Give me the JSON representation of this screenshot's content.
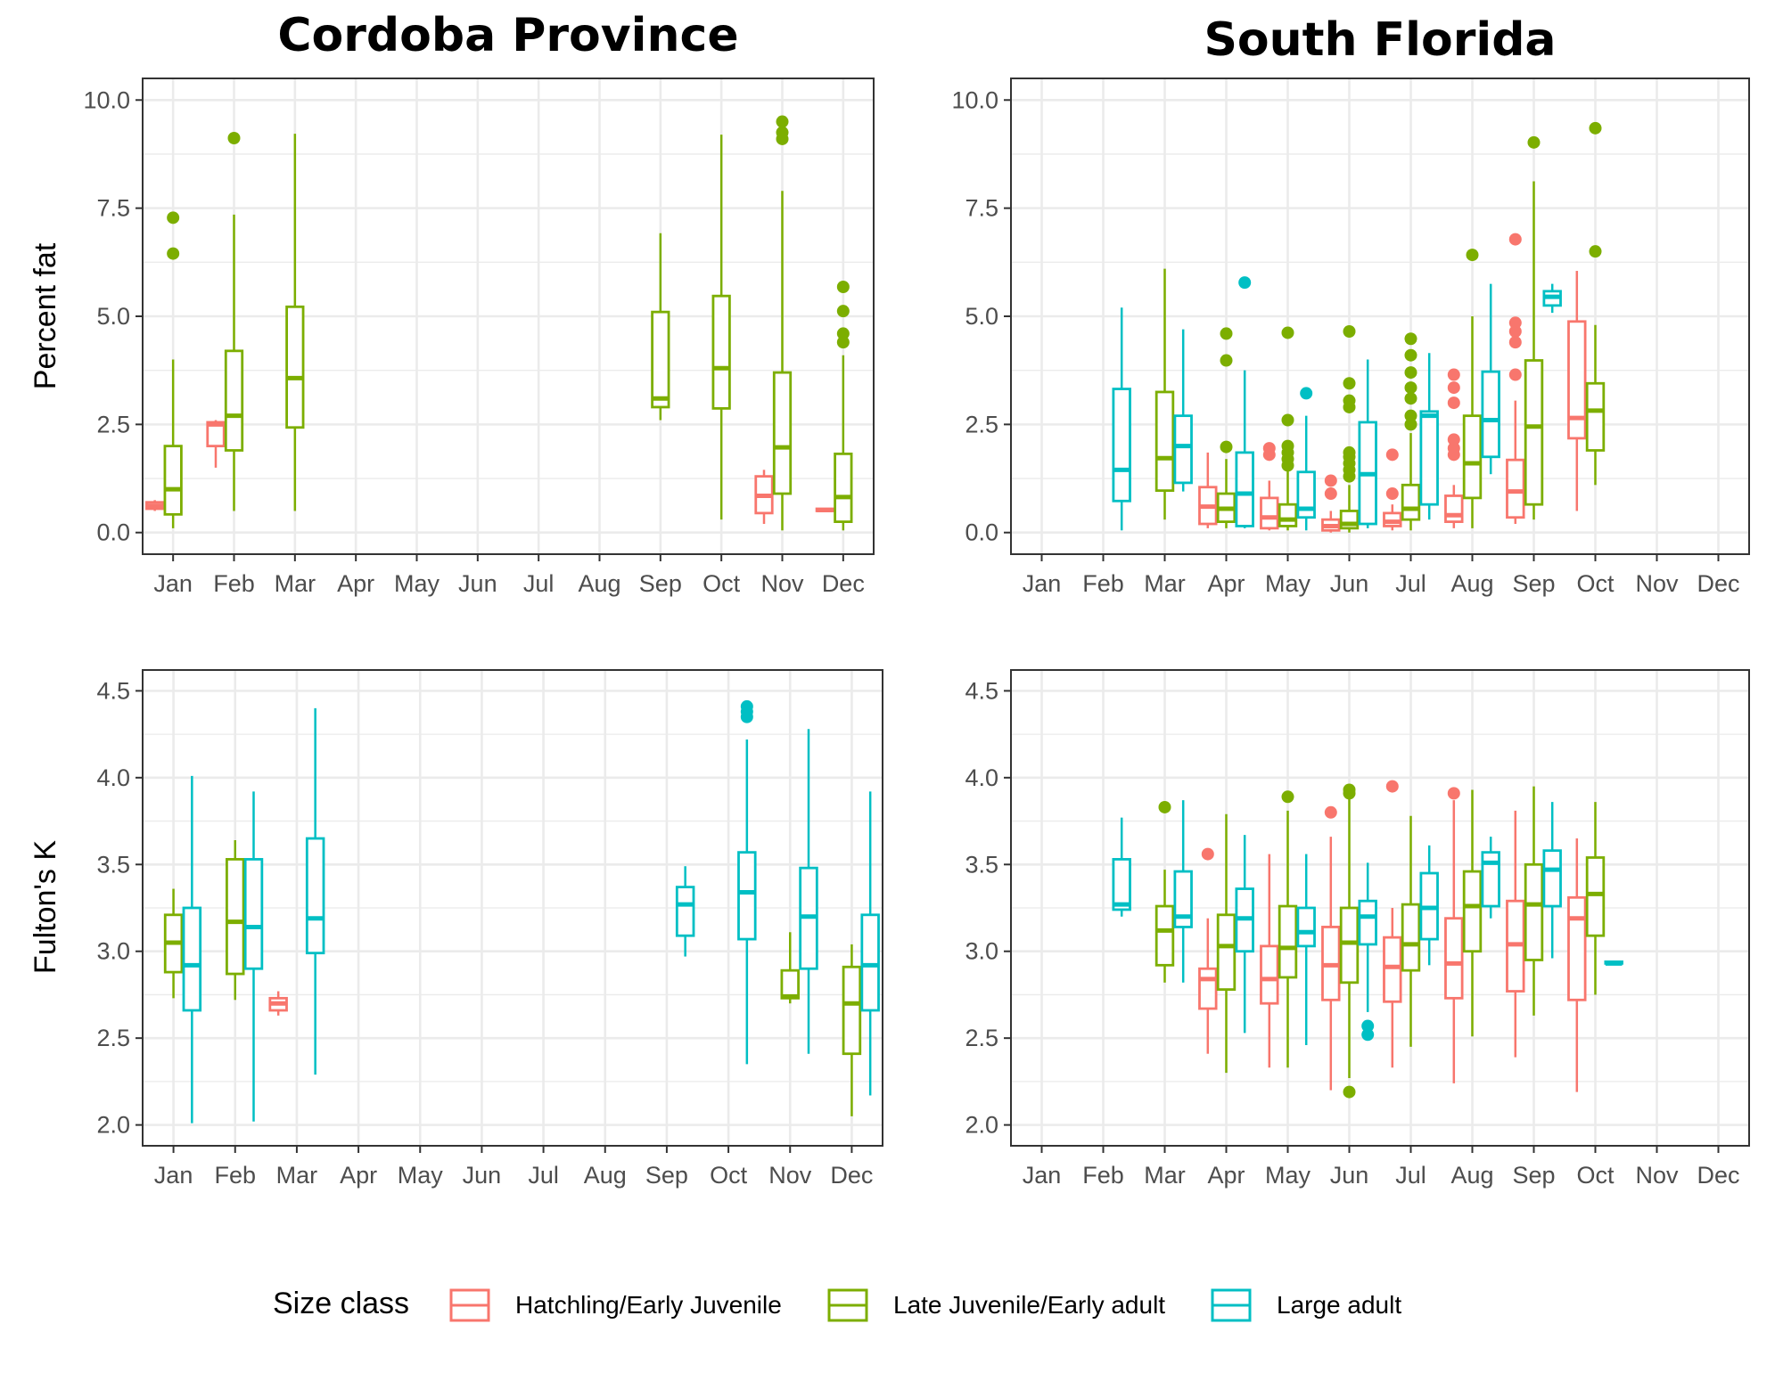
{
  "colors": {
    "hatchling": "#F8766D",
    "late_juvenile": "#7CAE00",
    "large_adult": "#00BFC4",
    "grid": "#EBEBEB",
    "panel_border": "#333333",
    "axis_text": "#4D4D4D"
  },
  "months": [
    "Jan",
    "Feb",
    "Mar",
    "Apr",
    "May",
    "Jun",
    "Jul",
    "Aug",
    "Sep",
    "Oct",
    "Nov",
    "Dec"
  ],
  "legend": {
    "title": "Size class",
    "items": [
      {
        "key": "hatchling",
        "label": "Hatchling/Early Juvenile"
      },
      {
        "key": "late_juvenile",
        "label": "Late Juvenile/Early adult"
      },
      {
        "key": "large_adult",
        "label": "Large adult"
      }
    ],
    "position": "bottom"
  },
  "columns": [
    "Cordoba Province",
    "South Florida"
  ],
  "rows": [
    "Percent fat",
    "Fulton's K"
  ],
  "chart_data": [
    {
      "type": "box",
      "title": "Cordoba Province",
      "xlabel": "",
      "ylabel": "Percent fat",
      "ylim": [
        -0.5,
        10.5
      ],
      "yticks": [
        "0.0",
        "2.5",
        "5.0",
        "7.5",
        "10.0"
      ],
      "grid": true,
      "boxes": [
        {
          "month": "Jan",
          "cls": "hatchling",
          "min": 0.5,
          "q1": 0.55,
          "median": 0.62,
          "q3": 0.7,
          "max": 0.75,
          "outliers": []
        },
        {
          "month": "Jan",
          "cls": "late_juvenile",
          "min": 0.1,
          "q1": 0.42,
          "median": 1.0,
          "q3": 2.0,
          "max": 4.0,
          "outliers": [
            6.45,
            7.28
          ]
        },
        {
          "month": "Feb",
          "cls": "hatchling",
          "min": 1.5,
          "q1": 2.0,
          "median": 2.5,
          "q3": 2.55,
          "max": 2.6,
          "outliers": []
        },
        {
          "month": "Feb",
          "cls": "late_juvenile",
          "min": 0.5,
          "q1": 1.9,
          "median": 2.7,
          "q3": 4.2,
          "max": 7.35,
          "outliers": [
            9.12
          ]
        },
        {
          "month": "Mar",
          "cls": "late_juvenile",
          "min": 0.5,
          "q1": 2.43,
          "median": 3.57,
          "q3": 5.22,
          "max": 9.22,
          "outliers": []
        },
        {
          "month": "Sep",
          "cls": "late_juvenile",
          "min": 2.6,
          "q1": 2.9,
          "median": 3.1,
          "q3": 5.1,
          "max": 6.92,
          "outliers": []
        },
        {
          "month": "Oct",
          "cls": "late_juvenile",
          "min": 0.3,
          "q1": 2.87,
          "median": 3.8,
          "q3": 5.47,
          "max": 9.2,
          "outliers": []
        },
        {
          "month": "Nov",
          "cls": "hatchling",
          "min": 0.2,
          "q1": 0.45,
          "median": 0.85,
          "q3": 1.3,
          "max": 1.45,
          "outliers": []
        },
        {
          "month": "Nov",
          "cls": "late_juvenile",
          "min": 0.05,
          "q1": 0.9,
          "median": 1.97,
          "q3": 3.7,
          "max": 7.9,
          "outliers": [
            9.1,
            9.25,
            9.5
          ]
        },
        {
          "month": "Dec",
          "cls": "hatchling",
          "min": 0.5,
          "q1": 0.5,
          "median": 0.52,
          "q3": 0.55,
          "max": 0.55,
          "outliers": []
        },
        {
          "month": "Dec",
          "cls": "late_juvenile",
          "min": 0.05,
          "q1": 0.25,
          "median": 0.82,
          "q3": 1.82,
          "max": 4.1,
          "outliers": [
            4.4,
            4.6,
            5.12,
            5.68
          ]
        }
      ]
    },
    {
      "type": "box",
      "title": "South Florida",
      "xlabel": "",
      "ylabel": "",
      "ylim": [
        -0.5,
        10.5
      ],
      "yticks": [
        "0.0",
        "2.5",
        "5.0",
        "7.5",
        "10.0"
      ],
      "grid": true,
      "boxes": [
        {
          "month": "Feb",
          "cls": "large_adult",
          "min": 0.05,
          "q1": 0.73,
          "median": 1.45,
          "q3": 3.32,
          "max": 5.2,
          "outliers": []
        },
        {
          "month": "Mar",
          "cls": "late_juvenile",
          "min": 0.3,
          "q1": 0.97,
          "median": 1.72,
          "q3": 3.25,
          "max": 6.1,
          "outliers": []
        },
        {
          "month": "Mar",
          "cls": "large_adult",
          "min": 0.95,
          "q1": 1.15,
          "median": 2.0,
          "q3": 2.7,
          "max": 4.7,
          "outliers": []
        },
        {
          "month": "Apr",
          "cls": "hatchling",
          "min": 0.1,
          "q1": 0.2,
          "median": 0.6,
          "q3": 1.05,
          "max": 1.85,
          "outliers": []
        },
        {
          "month": "Apr",
          "cls": "late_juvenile",
          "min": 0.1,
          "q1": 0.25,
          "median": 0.55,
          "q3": 0.9,
          "max": 1.7,
          "outliers": [
            1.98,
            3.98,
            4.6
          ]
        },
        {
          "month": "Apr",
          "cls": "large_adult",
          "min": 0.1,
          "q1": 0.15,
          "median": 0.9,
          "q3": 1.85,
          "max": 3.75,
          "outliers": [
            5.78
          ]
        },
        {
          "month": "May",
          "cls": "hatchling",
          "min": 0.05,
          "q1": 0.1,
          "median": 0.35,
          "q3": 0.8,
          "max": 1.2,
          "outliers": [
            1.8,
            1.95
          ]
        },
        {
          "month": "May",
          "cls": "late_juvenile",
          "min": 0.05,
          "q1": 0.15,
          "median": 0.3,
          "q3": 0.65,
          "max": 1.45,
          "outliers": [
            1.55,
            1.7,
            1.85,
            2.0,
            2.6,
            4.62
          ]
        },
        {
          "month": "May",
          "cls": "large_adult",
          "min": 0.05,
          "q1": 0.35,
          "median": 0.55,
          "q3": 1.4,
          "max": 2.7,
          "outliers": [
            3.22
          ]
        },
        {
          "month": "Jun",
          "cls": "hatchling",
          "min": 0.0,
          "q1": 0.05,
          "median": 0.15,
          "q3": 0.3,
          "max": 0.5,
          "outliers": [
            0.9,
            1.2
          ]
        },
        {
          "month": "Jun",
          "cls": "late_juvenile",
          "min": 0.0,
          "q1": 0.1,
          "median": 0.2,
          "q3": 0.5,
          "max": 1.1,
          "outliers": [
            1.3,
            1.45,
            1.6,
            1.75,
            1.85,
            2.9,
            3.05,
            3.45,
            4.65
          ]
        },
        {
          "month": "Jun",
          "cls": "large_adult",
          "min": 0.1,
          "q1": 0.2,
          "median": 1.35,
          "q3": 2.55,
          "max": 4.0,
          "outliers": []
        },
        {
          "month": "Jul",
          "cls": "hatchling",
          "min": 0.05,
          "q1": 0.15,
          "median": 0.25,
          "q3": 0.45,
          "max": 0.65,
          "outliers": [
            0.9,
            1.8
          ]
        },
        {
          "month": "Jul",
          "cls": "late_juvenile",
          "min": 0.05,
          "q1": 0.3,
          "median": 0.55,
          "q3": 1.1,
          "max": 2.3,
          "outliers": [
            2.5,
            2.7,
            3.1,
            3.35,
            3.7,
            4.1,
            4.48
          ]
        },
        {
          "month": "Jul",
          "cls": "large_adult",
          "min": 0.3,
          "q1": 0.65,
          "median": 2.7,
          "q3": 2.8,
          "max": 4.15,
          "outliers": []
        },
        {
          "month": "Aug",
          "cls": "hatchling",
          "min": 0.1,
          "q1": 0.25,
          "median": 0.4,
          "q3": 0.85,
          "max": 1.1,
          "outliers": [
            1.8,
            1.95,
            2.15,
            3.0,
            3.35,
            3.65
          ]
        },
        {
          "month": "Aug",
          "cls": "late_juvenile",
          "min": 0.1,
          "q1": 0.8,
          "median": 1.6,
          "q3": 2.7,
          "max": 5.0,
          "outliers": [
            6.42
          ]
        },
        {
          "month": "Aug",
          "cls": "large_adult",
          "min": 1.35,
          "q1": 1.75,
          "median": 2.6,
          "q3": 3.72,
          "max": 5.75,
          "outliers": []
        },
        {
          "month": "Sep",
          "cls": "hatchling",
          "min": 0.2,
          "q1": 0.35,
          "median": 0.95,
          "q3": 1.68,
          "max": 3.05,
          "outliers": [
            3.65,
            4.4,
            4.65,
            4.85,
            6.78
          ]
        },
        {
          "month": "Sep",
          "cls": "late_juvenile",
          "min": 0.3,
          "q1": 0.65,
          "median": 2.45,
          "q3": 3.98,
          "max": 8.12,
          "outliers": [
            9.02
          ]
        },
        {
          "month": "Sep",
          "cls": "large_adult",
          "min": 5.08,
          "q1": 5.25,
          "median": 5.45,
          "q3": 5.58,
          "max": 5.75,
          "outliers": []
        },
        {
          "month": "Oct",
          "cls": "hatchling",
          "min": 0.5,
          "q1": 2.18,
          "median": 2.65,
          "q3": 4.88,
          "max": 6.05,
          "outliers": []
        },
        {
          "month": "Oct",
          "cls": "late_juvenile",
          "min": 1.1,
          "q1": 1.9,
          "median": 2.82,
          "q3": 3.45,
          "max": 4.8,
          "outliers": [
            6.5,
            9.35
          ]
        }
      ]
    },
    {
      "type": "box",
      "title": "",
      "xlabel": "",
      "ylabel": "Fulton's K",
      "ylim": [
        1.88,
        4.62
      ],
      "yticks": [
        "2.0",
        "2.5",
        "3.0",
        "3.5",
        "4.0",
        "4.5"
      ],
      "grid": true,
      "boxes": [
        {
          "month": "Jan",
          "cls": "late_juvenile",
          "min": 2.73,
          "q1": 2.88,
          "median": 3.05,
          "q3": 3.21,
          "max": 3.36,
          "outliers": []
        },
        {
          "month": "Jan",
          "cls": "large_adult",
          "min": 2.01,
          "q1": 2.66,
          "median": 2.92,
          "q3": 3.25,
          "max": 4.01,
          "outliers": []
        },
        {
          "month": "Feb",
          "cls": "late_juvenile",
          "min": 2.72,
          "q1": 2.87,
          "median": 3.17,
          "q3": 3.53,
          "max": 3.64,
          "outliers": []
        },
        {
          "month": "Feb",
          "cls": "large_adult",
          "min": 2.02,
          "q1": 2.9,
          "median": 3.14,
          "q3": 3.53,
          "max": 3.92,
          "outliers": []
        },
        {
          "month": "Mar",
          "cls": "hatchling",
          "min": 2.63,
          "q1": 2.66,
          "median": 2.7,
          "q3": 2.73,
          "max": 2.77,
          "outliers": []
        },
        {
          "month": "Mar",
          "cls": "large_adult",
          "min": 2.29,
          "q1": 2.99,
          "median": 3.19,
          "q3": 3.65,
          "max": 4.4,
          "outliers": []
        },
        {
          "month": "Sep",
          "cls": "large_adult",
          "min": 2.97,
          "q1": 3.09,
          "median": 3.27,
          "q3": 3.37,
          "max": 3.49,
          "outliers": []
        },
        {
          "month": "Oct",
          "cls": "large_adult",
          "min": 2.35,
          "q1": 3.07,
          "median": 3.34,
          "q3": 3.57,
          "max": 4.22,
          "outliers": [
            4.35,
            4.38,
            4.41
          ]
        },
        {
          "month": "Nov",
          "cls": "late_juvenile",
          "min": 2.7,
          "q1": 2.73,
          "median": 2.74,
          "q3": 2.89,
          "max": 3.11,
          "outliers": []
        },
        {
          "month": "Nov",
          "cls": "large_adult",
          "min": 2.41,
          "q1": 2.9,
          "median": 3.2,
          "q3": 3.48,
          "max": 4.28,
          "outliers": []
        },
        {
          "month": "Dec",
          "cls": "late_juvenile",
          "min": 2.05,
          "q1": 2.41,
          "median": 2.7,
          "q3": 2.91,
          "max": 3.04,
          "outliers": []
        },
        {
          "month": "Dec",
          "cls": "large_adult",
          "min": 2.17,
          "q1": 2.66,
          "median": 2.92,
          "q3": 3.21,
          "max": 3.92,
          "outliers": []
        }
      ]
    },
    {
      "type": "box",
      "title": "",
      "xlabel": "",
      "ylabel": "",
      "ylim": [
        1.88,
        4.62
      ],
      "yticks": [
        "2.0",
        "2.5",
        "3.0",
        "3.5",
        "4.0",
        "4.5"
      ],
      "grid": true,
      "boxes": [
        {
          "month": "Feb",
          "cls": "large_adult",
          "min": 3.2,
          "q1": 3.24,
          "median": 3.27,
          "q3": 3.53,
          "max": 3.77,
          "outliers": []
        },
        {
          "month": "Mar",
          "cls": "late_juvenile",
          "min": 2.82,
          "q1": 2.92,
          "median": 3.12,
          "q3": 3.26,
          "max": 3.47,
          "outliers": [
            3.83
          ]
        },
        {
          "month": "Mar",
          "cls": "large_adult",
          "min": 2.82,
          "q1": 3.14,
          "median": 3.2,
          "q3": 3.46,
          "max": 3.87,
          "outliers": []
        },
        {
          "month": "Apr",
          "cls": "hatchling",
          "min": 2.41,
          "q1": 2.67,
          "median": 2.84,
          "q3": 2.9,
          "max": 3.19,
          "outliers": [
            3.56
          ]
        },
        {
          "month": "Apr",
          "cls": "late_juvenile",
          "min": 2.3,
          "q1": 2.78,
          "median": 3.03,
          "q3": 3.21,
          "max": 3.79,
          "outliers": []
        },
        {
          "month": "Apr",
          "cls": "large_adult",
          "min": 2.53,
          "q1": 3.0,
          "median": 3.19,
          "q3": 3.36,
          "max": 3.67,
          "outliers": []
        },
        {
          "month": "May",
          "cls": "hatchling",
          "min": 2.33,
          "q1": 2.7,
          "median": 2.84,
          "q3": 3.03,
          "max": 3.56,
          "outliers": []
        },
        {
          "month": "May",
          "cls": "late_juvenile",
          "min": 2.33,
          "q1": 2.85,
          "median": 3.02,
          "q3": 3.26,
          "max": 3.81,
          "outliers": [
            3.89
          ]
        },
        {
          "month": "May",
          "cls": "large_adult",
          "min": 2.46,
          "q1": 3.03,
          "median": 3.11,
          "q3": 3.25,
          "max": 3.56,
          "outliers": []
        },
        {
          "month": "Jun",
          "cls": "hatchling",
          "min": 2.2,
          "q1": 2.72,
          "median": 2.92,
          "q3": 3.14,
          "max": 3.66,
          "outliers": [
            3.8
          ]
        },
        {
          "month": "Jun",
          "cls": "late_juvenile",
          "min": 2.27,
          "q1": 2.82,
          "median": 3.05,
          "q3": 3.25,
          "max": 3.88,
          "outliers": [
            2.19,
            3.91,
            3.93
          ]
        },
        {
          "month": "Jun",
          "cls": "large_adult",
          "min": 2.65,
          "q1": 3.04,
          "median": 3.2,
          "q3": 3.29,
          "max": 3.51,
          "outliers": [
            2.52,
            2.57
          ]
        },
        {
          "month": "Jul",
          "cls": "hatchling",
          "min": 2.33,
          "q1": 2.71,
          "median": 2.91,
          "q3": 3.08,
          "max": 3.25,
          "outliers": [
            3.95
          ]
        },
        {
          "month": "Jul",
          "cls": "late_juvenile",
          "min": 2.45,
          "q1": 2.89,
          "median": 3.04,
          "q3": 3.27,
          "max": 3.78,
          "outliers": []
        },
        {
          "month": "Jul",
          "cls": "large_adult",
          "min": 2.92,
          "q1": 3.07,
          "median": 3.25,
          "q3": 3.45,
          "max": 3.61,
          "outliers": []
        },
        {
          "month": "Aug",
          "cls": "hatchling",
          "min": 2.24,
          "q1": 2.73,
          "median": 2.93,
          "q3": 3.19,
          "max": 3.87,
          "outliers": [
            3.91
          ]
        },
        {
          "month": "Aug",
          "cls": "late_juvenile",
          "min": 2.51,
          "q1": 3.0,
          "median": 3.26,
          "q3": 3.46,
          "max": 3.93,
          "outliers": []
        },
        {
          "month": "Aug",
          "cls": "large_adult",
          "min": 3.19,
          "q1": 3.26,
          "median": 3.51,
          "q3": 3.57,
          "max": 3.66,
          "outliers": []
        },
        {
          "month": "Sep",
          "cls": "hatchling",
          "min": 2.39,
          "q1": 2.77,
          "median": 3.04,
          "q3": 3.29,
          "max": 3.81,
          "outliers": []
        },
        {
          "month": "Sep",
          "cls": "late_juvenile",
          "min": 2.63,
          "q1": 2.95,
          "median": 3.27,
          "q3": 3.5,
          "max": 3.95,
          "outliers": []
        },
        {
          "month": "Sep",
          "cls": "large_adult",
          "min": 2.96,
          "q1": 3.26,
          "median": 3.47,
          "q3": 3.58,
          "max": 3.86,
          "outliers": []
        },
        {
          "month": "Oct",
          "cls": "hatchling",
          "min": 2.19,
          "q1": 2.72,
          "median": 3.19,
          "q3": 3.31,
          "max": 3.65,
          "outliers": []
        },
        {
          "month": "Oct",
          "cls": "late_juvenile",
          "min": 2.75,
          "q1": 3.09,
          "median": 3.33,
          "q3": 3.54,
          "max": 3.86,
          "outliers": []
        },
        {
          "month": "Oct",
          "cls": "large_adult",
          "min": 2.93,
          "q1": 2.93,
          "median": 2.93,
          "q3": 2.94,
          "max": 2.94,
          "outliers": []
        }
      ]
    }
  ]
}
